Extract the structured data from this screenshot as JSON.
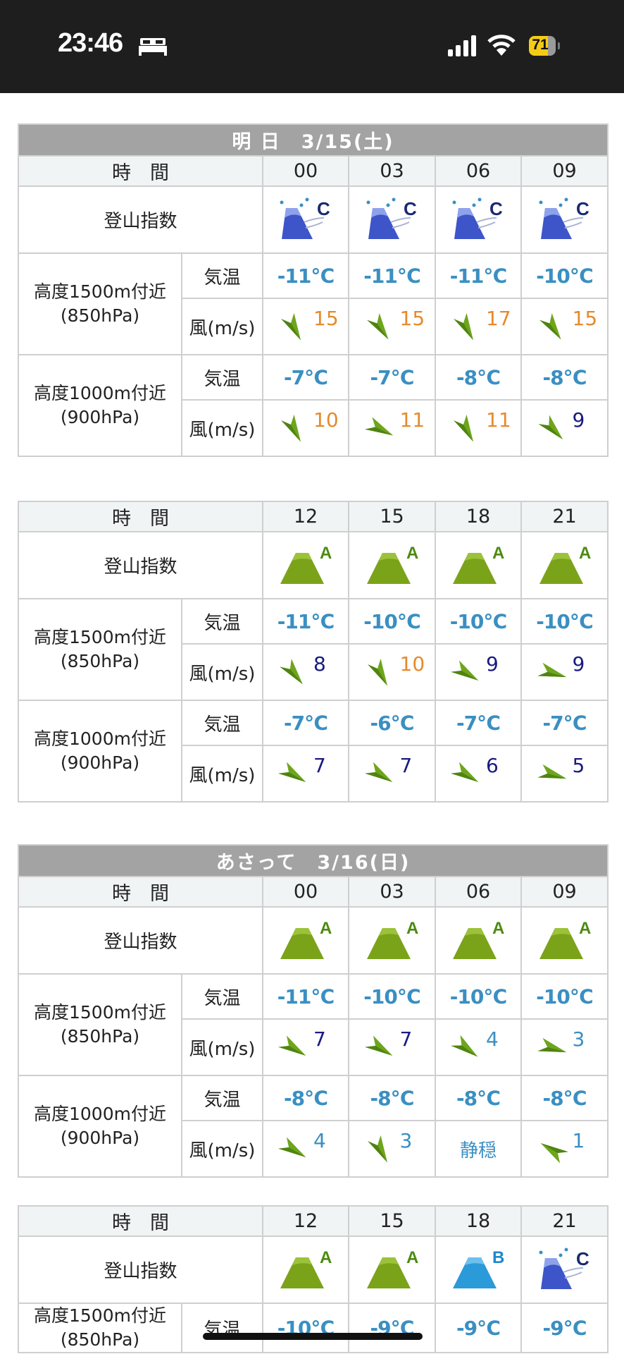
{
  "status_bar": {
    "time": "23:46",
    "focus_icon": "bed-icon",
    "battery": "71"
  },
  "labels": {
    "time_header": "時　間",
    "index_label": "登山指数",
    "temp_label": "気温",
    "wind_label": "風(m/s)",
    "calm_text": "静穏"
  },
  "altitudes": [
    {
      "line1": "高度1500m付近",
      "line2": "(850hPa)"
    },
    {
      "line1": "高度1000m付近",
      "line2": "(900hPa)"
    }
  ],
  "colors": {
    "wind_strong": "#e58a2e",
    "wind_moderate": "#1a1a80",
    "wind_weak": "#3a8fc2",
    "temp": "#3a8fc2",
    "grade_A": "#7ba31a",
    "grade_B": "#2a9ad8",
    "grade_C": "#3d55c8"
  },
  "tables": [
    {
      "title": "明 日　3/15(土)",
      "times": [
        "00",
        "03",
        "06",
        "09"
      ],
      "grades": [
        "C",
        "C",
        "C",
        "C"
      ],
      "rows": [
        {
          "temps": [
            "-11℃",
            "-11℃",
            "-11℃",
            "-10℃"
          ],
          "winds": [
            {
              "speed": "15",
              "dir": 60
            },
            {
              "speed": "15",
              "dir": 55
            },
            {
              "speed": "17",
              "dir": 60
            },
            {
              "speed": "15",
              "dir": 55
            }
          ]
        },
        {
          "temps": [
            "-7℃",
            "-7℃",
            "-8℃",
            "-8℃"
          ],
          "winds": [
            {
              "speed": "10",
              "dir": 60
            },
            {
              "speed": "11",
              "dir": 25
            },
            {
              "speed": "11",
              "dir": 60
            },
            {
              "speed": "9",
              "dir": 45
            }
          ]
        }
      ]
    },
    {
      "title": "",
      "times": [
        "12",
        "15",
        "18",
        "21"
      ],
      "grades": [
        "A",
        "A",
        "A",
        "A"
      ],
      "rows": [
        {
          "temps": [
            "-11℃",
            "-10℃",
            "-10℃",
            "-10℃"
          ],
          "winds": [
            {
              "speed": "8",
              "dir": 50
            },
            {
              "speed": "10",
              "dir": 60
            },
            {
              "speed": "9",
              "dir": 30
            },
            {
              "speed": "9",
              "dir": 15
            }
          ]
        },
        {
          "temps": [
            "-7℃",
            "-6℃",
            "-7℃",
            "-7℃"
          ],
          "winds": [
            {
              "speed": "7",
              "dir": 30
            },
            {
              "speed": "7",
              "dir": 30
            },
            {
              "speed": "6",
              "dir": 30
            },
            {
              "speed": "5",
              "dir": 15
            }
          ]
        }
      ]
    },
    {
      "title": "あさって　3/16(日)",
      "times": [
        "00",
        "03",
        "06",
        "09"
      ],
      "grades": [
        "A",
        "A",
        "A",
        "A"
      ],
      "rows": [
        {
          "temps": [
            "-11℃",
            "-10℃",
            "-10℃",
            "-10℃"
          ],
          "winds": [
            {
              "speed": "7",
              "dir": 30
            },
            {
              "speed": "7",
              "dir": 30
            },
            {
              "speed": "4",
              "dir": 35
            },
            {
              "speed": "3",
              "dir": 15
            }
          ]
        },
        {
          "temps": [
            "-8℃",
            "-8℃",
            "-8℃",
            "-8℃"
          ],
          "winds": [
            {
              "speed": "4",
              "dir": 30
            },
            {
              "speed": "3",
              "dir": 60
            },
            {
              "speed": "",
              "dir": null
            },
            {
              "speed": "1",
              "dir": -150
            }
          ]
        }
      ]
    },
    {
      "title": "",
      "times": [
        "12",
        "15",
        "18",
        "21"
      ],
      "grades": [
        "A",
        "A",
        "B",
        "C"
      ],
      "rows": [
        {
          "temps": [
            "-10℃",
            "-9℃",
            "-9℃",
            "-9℃"
          ],
          "winds": []
        }
      ]
    }
  ]
}
